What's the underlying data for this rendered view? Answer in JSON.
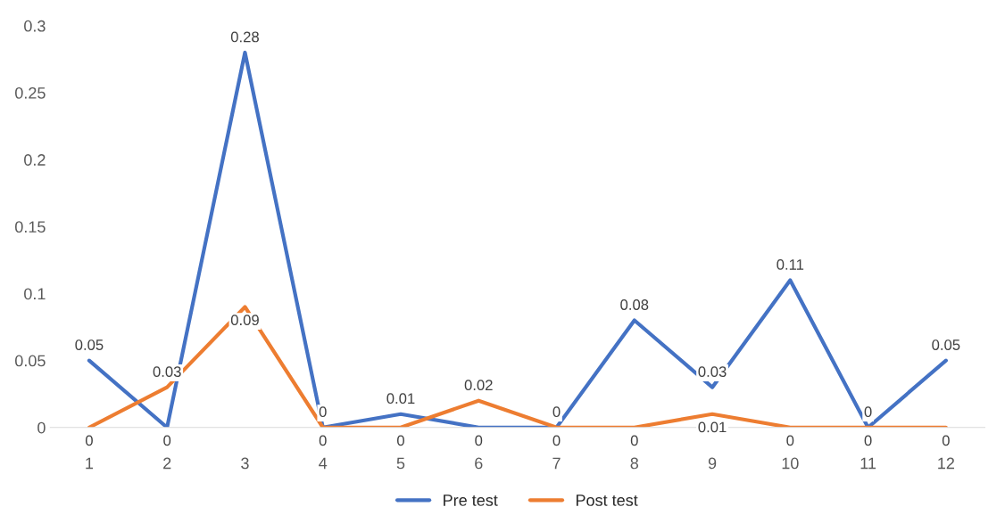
{
  "chart_data": {
    "type": "line",
    "categories": [
      "1",
      "2",
      "3",
      "4",
      "5",
      "6",
      "7",
      "8",
      "9",
      "10",
      "11",
      "12"
    ],
    "series": [
      {
        "name": "Pre test",
        "color": "#4472c4",
        "values": [
          0.05,
          0,
          0.28,
          0,
          0.01,
          0,
          0,
          0.08,
          0.03,
          0.11,
          0,
          0.05
        ]
      },
      {
        "name": "Post test",
        "color": "#ed7d31",
        "values": [
          0,
          0.03,
          0.09,
          0,
          0,
          0.02,
          0,
          0,
          0.01,
          0,
          0,
          0
        ]
      }
    ],
    "ylim": [
      0,
      0.3
    ],
    "yticks": [
      0,
      0.05,
      0.1,
      0.15,
      0.2,
      0.25,
      0.3
    ],
    "data_labels": true,
    "legend": "bottom",
    "grid": false,
    "marker": "none",
    "line_style": "solid"
  }
}
